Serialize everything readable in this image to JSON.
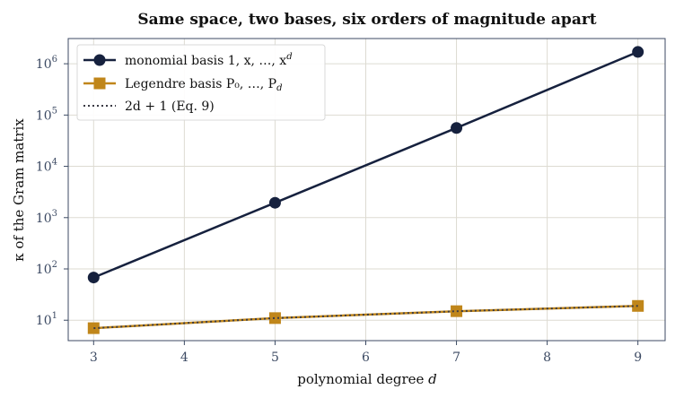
{
  "chart_data": {
    "type": "line",
    "title": "Same space, two bases, six orders of magnitude apart",
    "xlabel": "polynomial degree d",
    "ylabel": "κ of the Gram matrix",
    "yscale": "log",
    "xlim": [
      2.72,
      9.3
    ],
    "ylim": [
      4,
      3100000
    ],
    "x_ticks": [
      3,
      4,
      5,
      6,
      7,
      8,
      9
    ],
    "y_ticks": [
      {
        "value": 10,
        "base": "10",
        "exp": "1"
      },
      {
        "value": 100,
        "base": "10",
        "exp": "2"
      },
      {
        "value": 1000,
        "base": "10",
        "exp": "3"
      },
      {
        "value": 10000,
        "base": "10",
        "exp": "4"
      },
      {
        "value": 100000,
        "base": "10",
        "exp": "5"
      },
      {
        "value": 1000000,
        "base": "10",
        "exp": "6"
      }
    ],
    "grid": true,
    "legend_position": "top-left",
    "series": [
      {
        "name": "monomial basis 1, x, …, x",
        "name_sup": "d",
        "x": [
          3,
          5,
          7,
          9
        ],
        "y": [
          68,
          1950,
          56000,
          1700000
        ],
        "color": "#16213e",
        "marker": "circle",
        "dash": "solid"
      },
      {
        "name": "Legendre basis P₀, …, P",
        "name_sub": "d",
        "x": [
          3,
          5,
          7,
          9
        ],
        "y": [
          7,
          11,
          15,
          19
        ],
        "color": "#c0861a",
        "marker": "square",
        "dash": "solid"
      },
      {
        "name": "2d + 1  (Eq. 9)",
        "x": [
          3,
          5,
          7,
          9
        ],
        "y": [
          7,
          11,
          15,
          19
        ],
        "color": "#3a3a44",
        "marker": "none",
        "dash": "dotted"
      }
    ]
  },
  "colors": {
    "frame": "#3c4a63",
    "grid": "#dddbd2",
    "monomial": "#16213e",
    "legendre": "#c0861a"
  }
}
